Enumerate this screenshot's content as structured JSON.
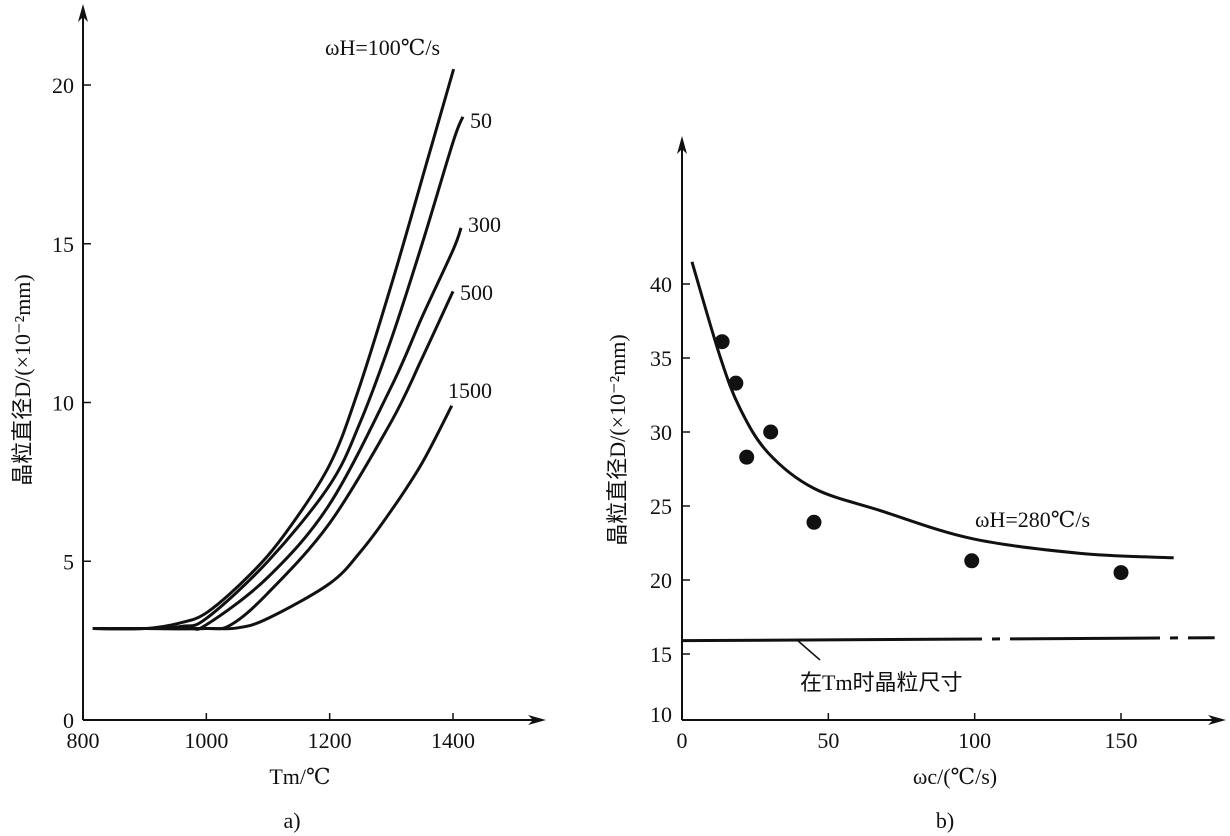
{
  "chart_data": [
    {
      "type": "line",
      "panel_label": "a)",
      "xlabel": "Tm/℃",
      "xlabel_main": "T",
      "xlabel_sub": "m",
      "xlabel_unit": "/℃",
      "ylabel": "晶粒直径D/(×10⁻²mm)",
      "xlim": [
        800,
        1500
      ],
      "ylim": [
        0,
        22
      ],
      "xticks": [
        "800",
        "1000",
        "1200",
        "1400"
      ],
      "xtick_values": [
        800,
        1000,
        1200,
        1400
      ],
      "yticks": [
        "0",
        "5",
        "10",
        "15",
        "20"
      ],
      "ytick_values": [
        0,
        5,
        10,
        15,
        20
      ],
      "legend_prefix": "ωH=",
      "series": [
        {
          "name": "100",
          "label": "ωH=100℃/s",
          "x": [
            816,
            900,
            956,
            1002,
            1072,
            1129,
            1199,
            1245,
            1303,
            1361,
            1401
          ],
          "y": [
            2.88,
            2.88,
            3.05,
            3.4,
            4.6,
            5.9,
            8.0,
            10.3,
            13.9,
            17.8,
            20.5
          ]
        },
        {
          "name": "50",
          "label": "50",
          "x": [
            816,
            900,
            960,
            1000,
            1100,
            1200,
            1250,
            1300,
            1350,
            1400,
            1416
          ],
          "y": [
            2.88,
            2.88,
            2.95,
            3.2,
            5.0,
            7.4,
            9.4,
            12.0,
            15.0,
            18.2,
            19.0
          ]
        },
        {
          "name": "300",
          "label": "300",
          "x": [
            816,
            900,
            970,
            1000,
            1100,
            1200,
            1300,
            1350,
            1400,
            1413
          ],
          "y": [
            2.88,
            2.88,
            2.9,
            3.0,
            4.5,
            6.8,
            10.5,
            12.7,
            14.8,
            15.5
          ]
        },
        {
          "name": "500",
          "label": "500",
          "x": [
            816,
            900,
            1000,
            1040,
            1100,
            1200,
            1300,
            1350,
            1400
          ],
          "y": [
            2.88,
            2.88,
            2.88,
            3.0,
            4.0,
            6.2,
            9.4,
            11.4,
            13.5
          ]
        },
        {
          "name": "1500",
          "label": "1500",
          "x": [
            816,
            900,
            1000,
            1050,
            1100,
            1200,
            1250,
            1300,
            1350,
            1398
          ],
          "y": [
            2.88,
            2.88,
            2.88,
            2.9,
            3.2,
            4.3,
            5.3,
            6.6,
            8.1,
            9.9
          ]
        }
      ]
    },
    {
      "type": "scatter",
      "panel_label": "b)",
      "xlabel": "ωc/(℃/s)",
      "ylabel": "晶粒直径D/(×10⁻²mm)",
      "xlim": [
        0,
        185
      ],
      "ylim": [
        10,
        45
      ],
      "xticks": [
        "0",
        "50",
        "100",
        "150"
      ],
      "xtick_values": [
        0,
        50,
        100,
        150
      ],
      "yticks": [
        "10",
        "15",
        "20",
        "25",
        "30",
        "35",
        "40"
      ],
      "ytick_values": [
        10,
        15,
        20,
        25,
        30,
        35,
        40
      ],
      "points": {
        "x": [
          13.7,
          18.4,
          22.1,
          30.3,
          45.1,
          99.0,
          150.0
        ],
        "y": [
          36.1,
          33.3,
          28.3,
          30.0,
          23.9,
          21.3,
          20.5
        ]
      },
      "fit_curve": {
        "label": "ωH=280℃/s",
        "x": [
          3.4,
          13,
          19.8,
          29.4,
          45,
          67.6,
          99,
          136,
          168
        ],
        "y": [
          41.5,
          35.1,
          31.6,
          28.6,
          26.2,
          24.7,
          22.8,
          21.8,
          21.5
        ]
      },
      "reference_line": {
        "label": "在Tm时晶粒尺寸",
        "x": [
          0,
          182
        ],
        "y": [
          15.9,
          16.1
        ],
        "style": "dash-dot"
      }
    }
  ]
}
